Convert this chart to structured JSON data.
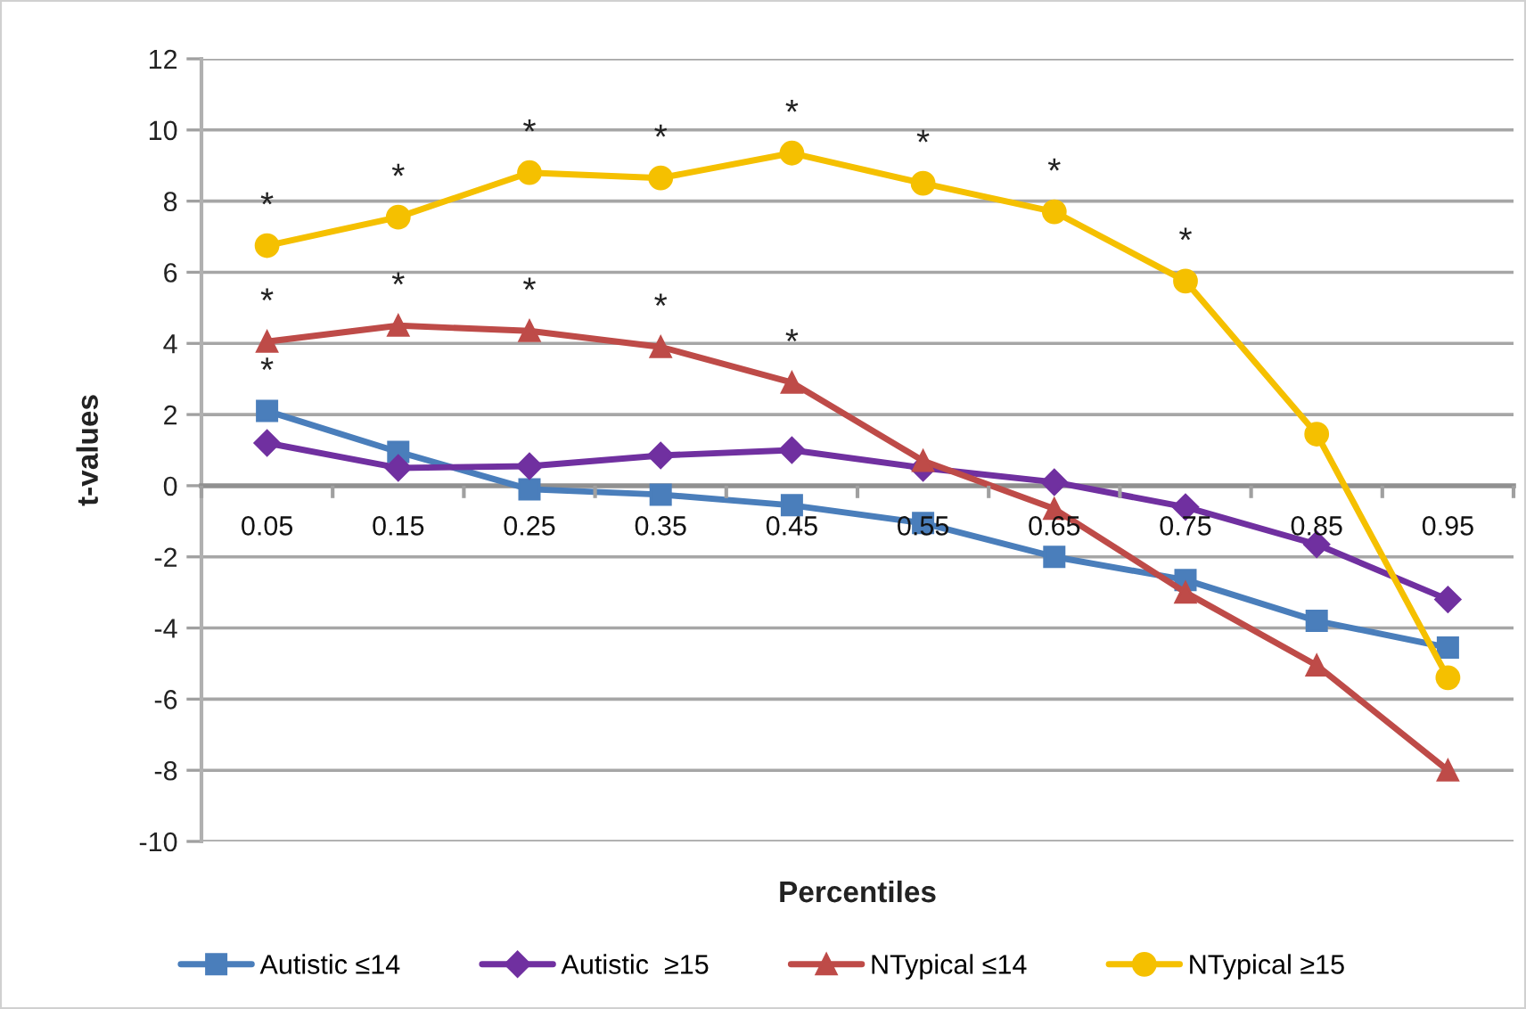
{
  "chart_data": {
    "type": "line",
    "xlabel": "Percentiles",
    "ylabel": "t-values",
    "categories": [
      "0.05",
      "0.15",
      "0.25",
      "0.35",
      "0.45",
      "0.55",
      "0.65",
      "0.75",
      "0.85",
      "0.95"
    ],
    "series": [
      {
        "name": "Autistic ≤14",
        "color": "#4a7ebb",
        "marker": "square",
        "values": [
          2.1,
          0.95,
          -0.1,
          -0.25,
          -0.55,
          -1.05,
          -2.0,
          -2.65,
          -3.8,
          -4.55
        ]
      },
      {
        "name": "Autistic  ≥15",
        "color": "#7030a0",
        "marker": "diamond",
        "values": [
          1.2,
          0.5,
          0.55,
          0.85,
          1.0,
          0.5,
          0.1,
          -0.6,
          -1.65,
          -3.2
        ]
      },
      {
        "name": "NTypical ≤14",
        "color": "#be4b48",
        "marker": "triangle",
        "values": [
          4.05,
          4.5,
          4.35,
          3.9,
          2.9,
          0.7,
          -0.65,
          -3.0,
          -5.05,
          -8.0
        ]
      },
      {
        "name": "NTypical ≥15",
        "color": "#f5c000",
        "marker": "circle",
        "values": [
          6.75,
          7.55,
          8.8,
          8.65,
          9.35,
          8.5,
          7.7,
          5.75,
          1.45,
          -5.4
        ]
      }
    ],
    "ylim": [
      -10,
      12
    ],
    "yticks": [
      -10,
      -8,
      -6,
      -4,
      -2,
      0,
      2,
      4,
      6,
      8,
      10,
      12
    ],
    "grid": "y",
    "legend": "bottom",
    "line_style": "solid",
    "annotations": [
      {
        "text": "*",
        "x": "0.05",
        "y": 6.75
      },
      {
        "text": "*",
        "x": "0.15",
        "y": 7.55
      },
      {
        "text": "*",
        "x": "0.25",
        "y": 8.8
      },
      {
        "text": "*",
        "x": "0.35",
        "y": 8.65
      },
      {
        "text": "*",
        "x": "0.45",
        "y": 9.35
      },
      {
        "text": "*",
        "x": "0.55",
        "y": 8.5
      },
      {
        "text": "*",
        "x": "0.65",
        "y": 7.7
      },
      {
        "text": "*",
        "x": "0.75",
        "y": 5.75
      },
      {
        "text": "*",
        "x": "0.05",
        "y": 4.05
      },
      {
        "text": "*",
        "x": "0.15",
        "y": 4.5
      },
      {
        "text": "*",
        "x": "0.25",
        "y": 4.35
      },
      {
        "text": "*",
        "x": "0.35",
        "y": 3.9
      },
      {
        "text": "*",
        "x": "0.45",
        "y": 2.9
      },
      {
        "text": "*",
        "x": "0.05",
        "y": 2.1
      }
    ]
  }
}
